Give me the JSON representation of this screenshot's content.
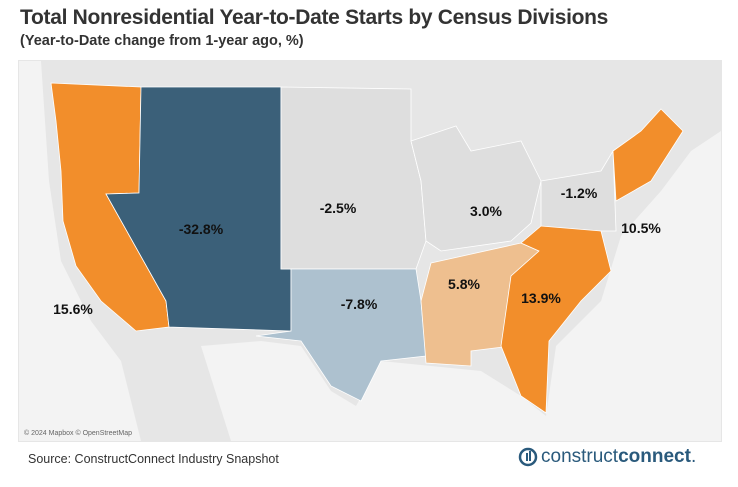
{
  "header": {
    "title": "Total Nonresidential Year-to-Date Starts by Census Divisions",
    "subtitle": "(Year-to-Date change from 1-year ago, %)"
  },
  "map": {
    "attribution": "© 2024 Mapbox © OpenStreetMap",
    "divisions": [
      {
        "name": "Pacific",
        "value": "15.6%",
        "color": "#f28e2b"
      },
      {
        "name": "Mountain",
        "value": "-32.8%",
        "color": "#3b6079"
      },
      {
        "name": "West North Central",
        "value": "-2.5%",
        "color": "#dedede"
      },
      {
        "name": "West South Central",
        "value": "-7.8%",
        "color": "#adc1cf"
      },
      {
        "name": "East North Central",
        "value": "3.0%",
        "color": "#dedede"
      },
      {
        "name": "East South Central",
        "value": "5.8%",
        "color": "#eebf8f"
      },
      {
        "name": "South Atlantic",
        "value": "13.9%",
        "color": "#f28e2b"
      },
      {
        "name": "Middle Atlantic",
        "value": "-1.2%",
        "color": "#dedede"
      },
      {
        "name": "New England",
        "value": "10.5%",
        "color": "#f28e2b"
      }
    ]
  },
  "footer": {
    "source": "Source: ConstructConnect Industry Snapshot",
    "logo_light": "construct",
    "logo_bold": "connect",
    "logo_dot": "."
  }
}
